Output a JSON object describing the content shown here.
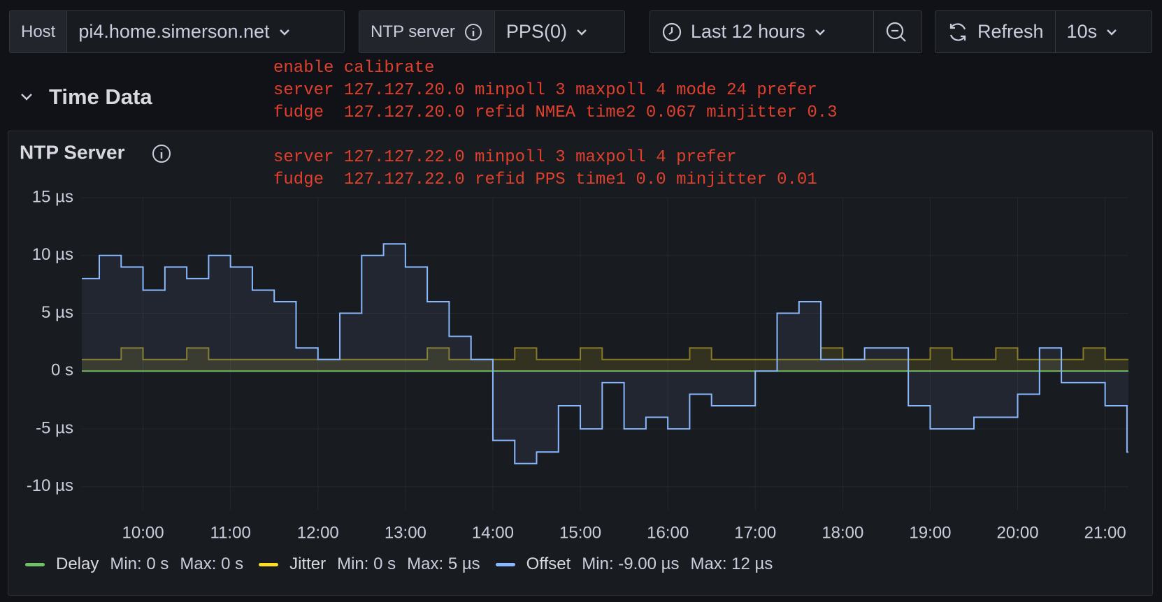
{
  "toolbar": {
    "host_label": "Host",
    "host_value": "pi4.home.simerson.net",
    "ntp_label": "NTP server",
    "ntp_value": "PPS(0)",
    "time_range": "Last 12 hours",
    "refresh": "Refresh",
    "refresh_interval": "10s"
  },
  "row_title": "Time Data",
  "annotations": [
    "enable calibrate",
    "server 127.127.20.0 minpoll 3 maxpoll 4 mode 24 prefer",
    "fudge  127.127.20.0 refid NMEA time2 0.067 minjitter 0.3",
    "server 127.127.22.0 minpoll 3 maxpoll 4 prefer",
    "fudge  127.127.22.0 refid PPS time1 0.0 minjitter 0.01"
  ],
  "chart_data": {
    "type": "line",
    "title": "NTP Server",
    "x": [
      "09:18",
      "09:30",
      "09:45",
      "10:00",
      "10:15",
      "10:30",
      "10:45",
      "11:00",
      "11:15",
      "11:30",
      "11:45",
      "12:00",
      "12:15",
      "12:30",
      "12:45",
      "13:00",
      "13:15",
      "13:30",
      "13:45",
      "14:00",
      "14:15",
      "14:30",
      "14:45",
      "15:00",
      "15:15",
      "15:30",
      "15:45",
      "16:00",
      "16:15",
      "16:30",
      "16:45",
      "17:00",
      "17:15",
      "17:30",
      "17:45",
      "18:00",
      "18:15",
      "18:30",
      "18:45",
      "19:00",
      "19:15",
      "19:30",
      "19:45",
      "20:00",
      "20:15",
      "20:30",
      "20:45",
      "21:00",
      "21:15"
    ],
    "xlim": [
      "09:18",
      "21:16"
    ],
    "xticks": [
      "10:00",
      "11:00",
      "12:00",
      "13:00",
      "14:00",
      "15:00",
      "16:00",
      "17:00",
      "18:00",
      "19:00",
      "20:00",
      "21:00"
    ],
    "ylim": [
      -12,
      15
    ],
    "yticks": [
      {
        "value": 15,
        "label": "15 µs"
      },
      {
        "value": 10,
        "label": "10 µs"
      },
      {
        "value": 5,
        "label": "5 µs"
      },
      {
        "value": 0,
        "label": "0 s"
      },
      {
        "value": -5,
        "label": "-5 µs"
      },
      {
        "value": -10,
        "label": "-10 µs"
      }
    ],
    "grid": true,
    "series": [
      {
        "name": "Delay",
        "color": "#73bf69",
        "min_label": "Min: 0 s",
        "max_label": "Max: 0 s",
        "values": [
          0,
          0,
          0,
          0,
          0,
          0,
          0,
          0,
          0,
          0,
          0,
          0,
          0,
          0,
          0,
          0,
          0,
          0,
          0,
          0,
          0,
          0,
          0,
          0,
          0,
          0,
          0,
          0,
          0,
          0,
          0,
          0,
          0,
          0,
          0,
          0,
          0,
          0,
          0,
          0,
          0,
          0,
          0,
          0,
          0,
          0,
          0,
          0,
          0
        ]
      },
      {
        "name": "Jitter",
        "color": "#fade2a",
        "min_label": "Min: 0 s",
        "max_label": "Max: 5 µs",
        "values": [
          1,
          1,
          2,
          1,
          1,
          2,
          1,
          1,
          1,
          1,
          1,
          1,
          1,
          1,
          1,
          1,
          2,
          1,
          1,
          1,
          2,
          1,
          1,
          2,
          1,
          1,
          1,
          1,
          2,
          1,
          1,
          1,
          1,
          1,
          2,
          1,
          1,
          1,
          1,
          2,
          1,
          1,
          2,
          1,
          1,
          1,
          2,
          1,
          1
        ]
      },
      {
        "name": "Offset",
        "color": "#8ab8ff",
        "min_label": "Min: -9.00 µs",
        "max_label": "Max: 12 µs",
        "values": [
          8,
          10,
          9,
          7,
          9,
          8,
          10,
          9,
          7,
          6,
          2,
          1,
          5,
          10,
          11,
          9,
          6,
          3,
          1,
          -6,
          -8,
          -7,
          -3,
          -5,
          -1,
          -5,
          -4,
          -5,
          -2,
          -3,
          -3,
          0,
          5,
          6,
          1,
          1,
          2,
          2,
          -3,
          -5,
          -5,
          -4,
          -4,
          -2,
          2,
          -1,
          -1,
          -3,
          -7
        ]
      }
    ]
  }
}
